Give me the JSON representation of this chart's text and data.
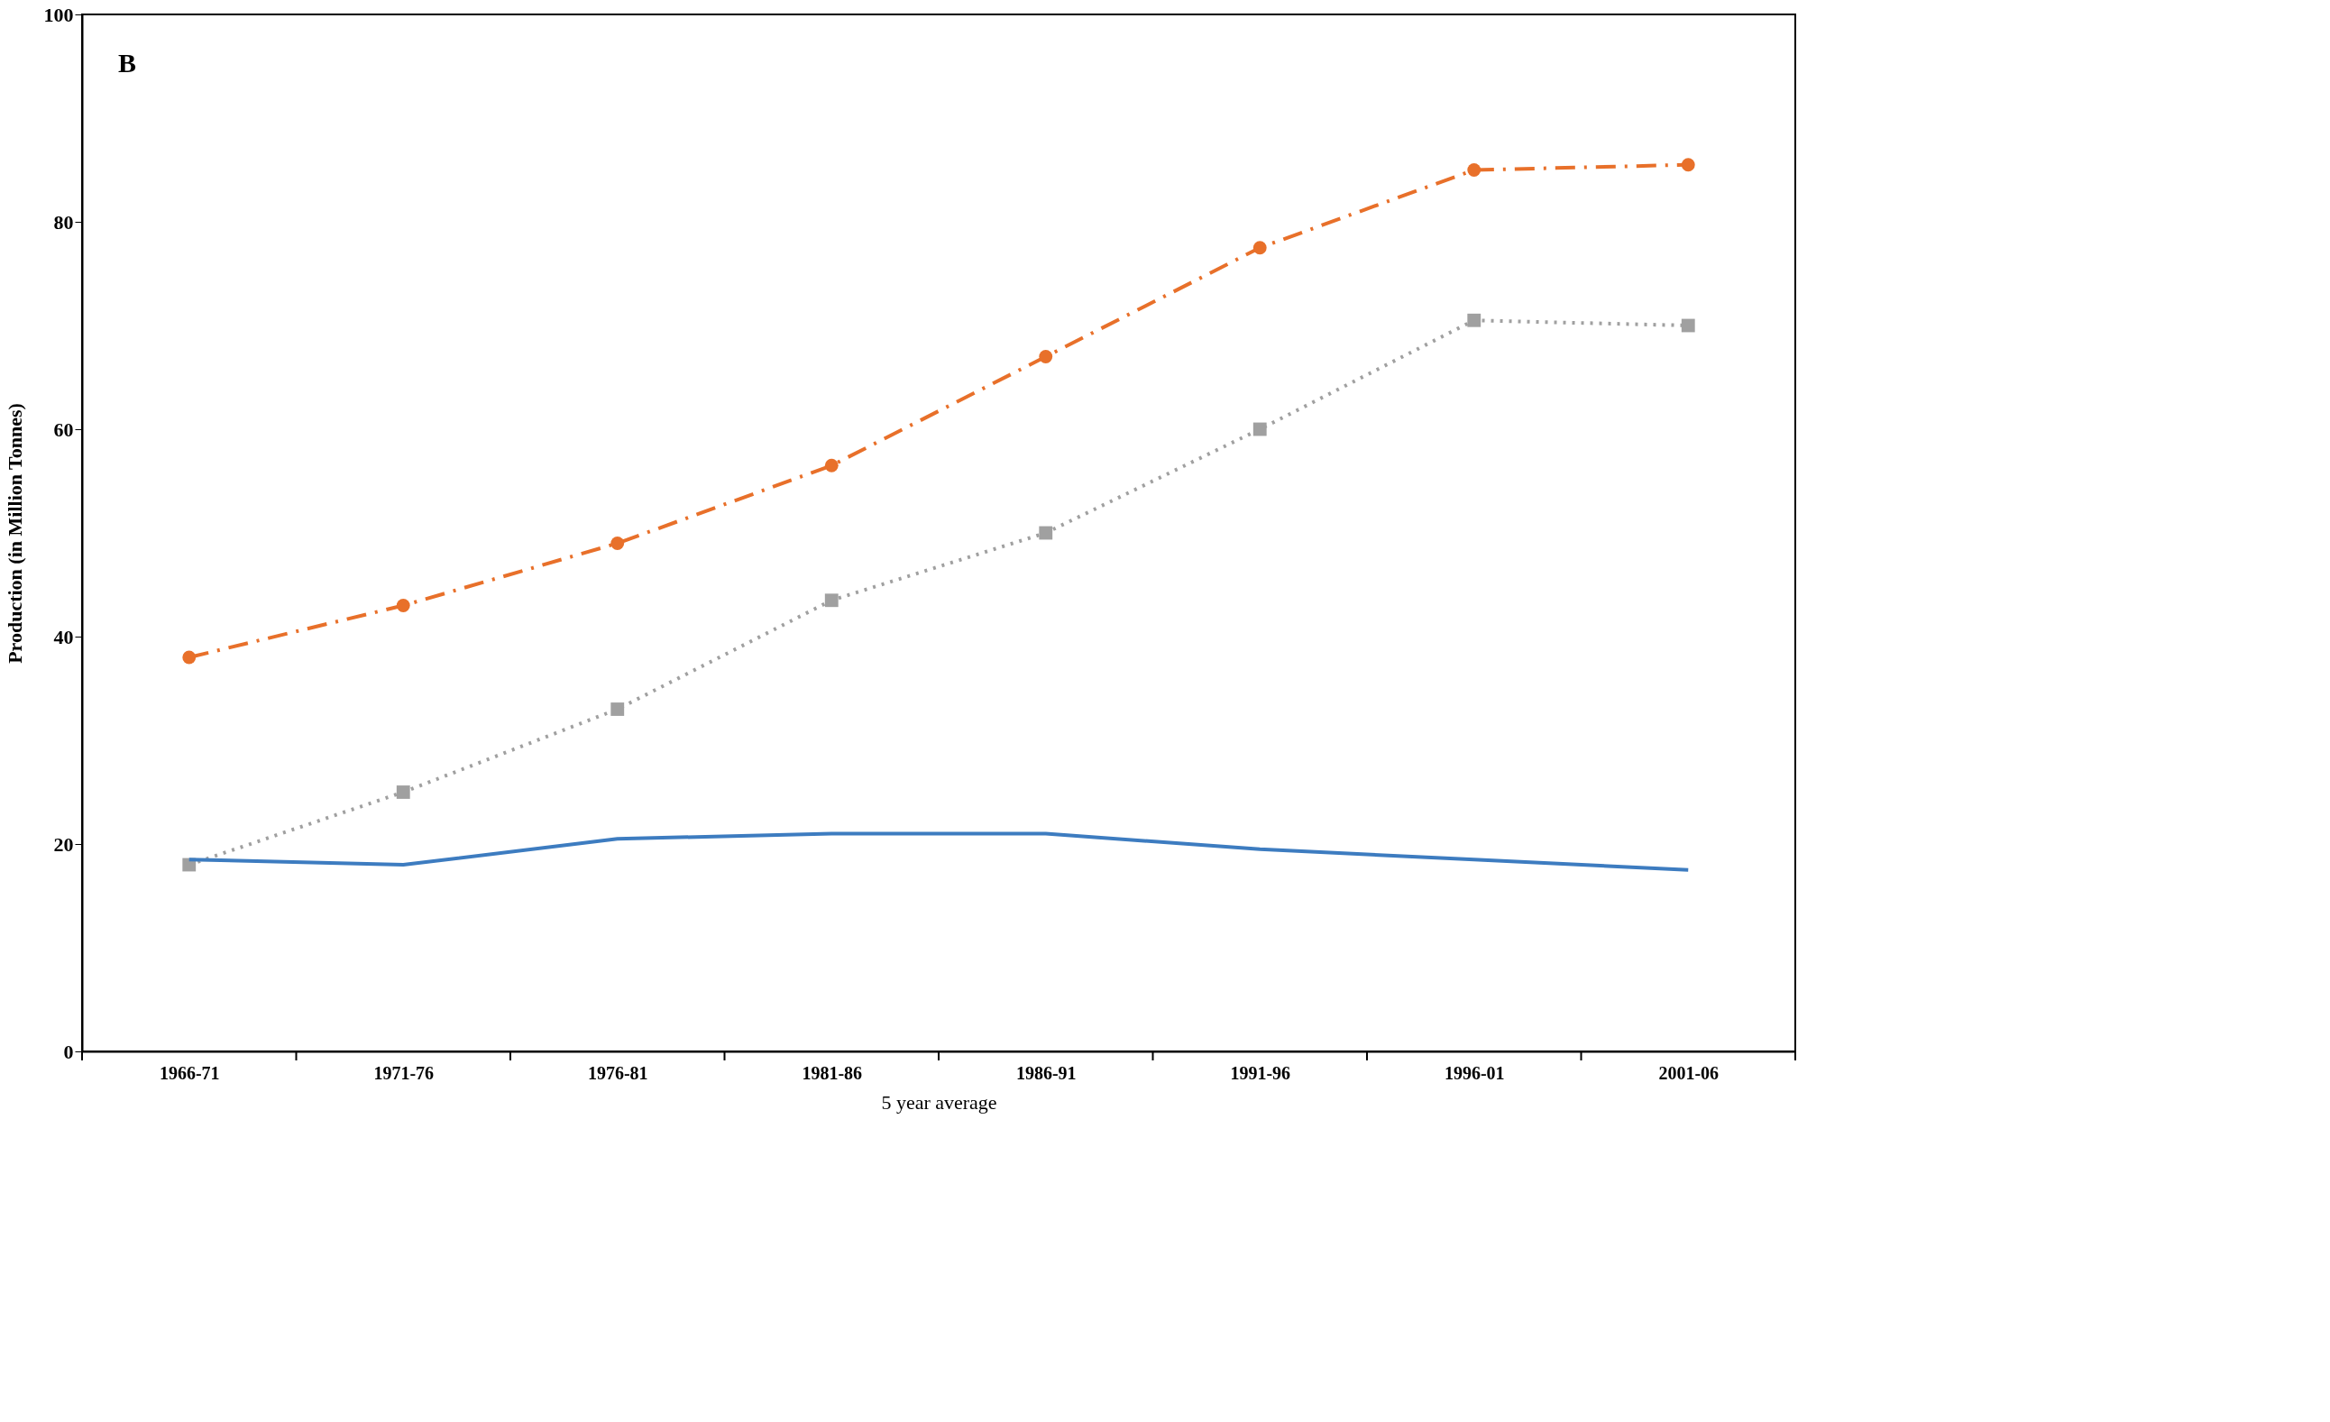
{
  "chart_data": {
    "type": "line",
    "xlabel": "5 year average",
    "ylabel": "Production  (in Million Tonnes)",
    "annotations": [
      "B"
    ],
    "categories": [
      "1966-71",
      "1971-76",
      "1976-81",
      "1981-86",
      "1986-91",
      "1991-96",
      "1996-01",
      "2001-06"
    ],
    "ylim": [
      0,
      100
    ],
    "yticks": [
      0,
      20,
      40,
      60,
      80,
      100
    ],
    "grid": false,
    "series": [
      {
        "color": "#e8702a",
        "marker": "circle",
        "line_style": "dashed",
        "values": [
          38,
          43,
          49,
          56.5,
          67,
          77.5,
          85,
          85.5
        ]
      },
      {
        "color": "#a0a0a0",
        "marker": "square",
        "line_style": "dotted",
        "values": [
          18,
          25,
          33,
          43.5,
          50,
          60,
          70.5,
          70
        ]
      },
      {
        "color": "#3d7cc0",
        "marker": "none",
        "line_style": "solid",
        "values": [
          18.5,
          18,
          20.5,
          21,
          21,
          19.5,
          18.5,
          17.5
        ]
      }
    ]
  }
}
